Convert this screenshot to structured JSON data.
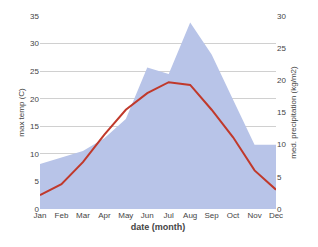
{
  "chart_data": {
    "type": "line",
    "xlabel": "date (month)",
    "ylabel": "max temp (C)",
    "y2label": "med. precipitation (kg/m2)",
    "categories": [
      "Jan",
      "Feb",
      "Mar",
      "Apr",
      "May",
      "Jun",
      "Jul",
      "Aug",
      "Sep",
      "Oct",
      "Nov",
      "Dec"
    ],
    "series": [
      {
        "type": "area",
        "axis": "y2",
        "color": "#b8c4e8",
        "values": [
          7.0,
          8.0,
          9.0,
          11.0,
          14.0,
          22.0,
          21.0,
          29.0,
          24.0,
          17.0,
          10.0,
          10.0
        ]
      },
      {
        "type": "line",
        "color": "#c0392b",
        "values": [
          2.5,
          4.5,
          8.5,
          13.5,
          18.0,
          21.0,
          23.0,
          22.5,
          18.0,
          13.0,
          7.0,
          3.5
        ]
      }
    ],
    "ylim": [
      0,
      35
    ],
    "yticks": [
      0,
      5,
      10,
      15,
      20,
      25,
      30,
      35
    ],
    "y2lim": [
      0,
      30
    ],
    "y2ticks": [
      0,
      5,
      10,
      15,
      20,
      25,
      30
    ],
    "grid": true
  }
}
